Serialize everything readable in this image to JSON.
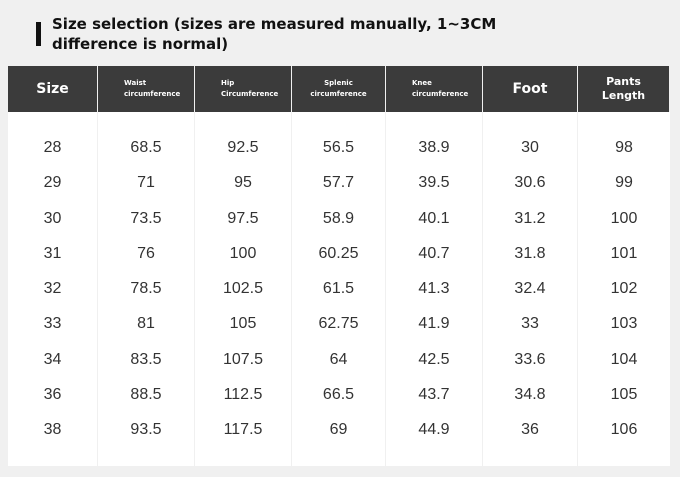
{
  "title": "Size selection (sizes are measured manually, 1~3CM difference is normal)",
  "headers": {
    "size": "Size",
    "waist_1": "Waist",
    "waist_2": "circumference",
    "hip_1": "Hip",
    "hip_2": "Circumference",
    "splenic_1": "Splenic",
    "splenic_2": "circumference",
    "knee_1": "Knee",
    "knee_2": "circumference",
    "foot": "Foot",
    "pants_1": "Pants",
    "pants_2": "Length"
  },
  "columns": {
    "size": [
      "28",
      "29",
      "30",
      "31",
      "32",
      "33",
      "34",
      "36",
      "38"
    ],
    "waist": [
      "68.5",
      "71",
      "73.5",
      "76",
      "78.5",
      "81",
      "83.5",
      "88.5",
      "93.5"
    ],
    "hip": [
      "92.5",
      "95",
      "97.5",
      "100",
      "102.5",
      "105",
      "107.5",
      "112.5",
      "117.5"
    ],
    "splenic": [
      "56.5",
      "57.7",
      "58.9",
      "60.25",
      "61.5",
      "62.75",
      "64",
      "66.5",
      "69"
    ],
    "knee": [
      "38.9",
      "39.5",
      "40.1",
      "40.7",
      "41.3",
      "41.9",
      "42.5",
      "43.7",
      "44.9"
    ],
    "foot": [
      "30",
      "30.6",
      "31.2",
      "31.8",
      "32.4",
      "33",
      "33.6",
      "34.8",
      "36"
    ],
    "pants": [
      "98",
      "99",
      "100",
      "101",
      "102",
      "103",
      "104",
      "105",
      "106"
    ]
  },
  "colors": {
    "header_bg": "#3b3b3b",
    "page_bg": "#f0f0f0",
    "body_bg": "#ffffff",
    "text": "#333333"
  }
}
